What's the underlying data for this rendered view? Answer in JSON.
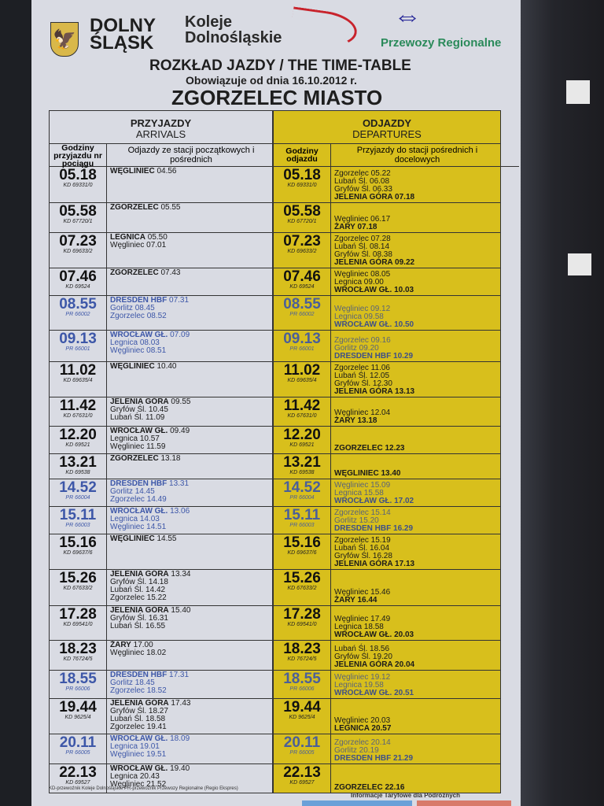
{
  "header": {
    "logo_dolny_slask": "DOLNY ŚLĄSK",
    "logo_koleje": "Koleje Dolnośląskie",
    "logo_przewozy": "Przewozy Regionalne",
    "title": "ROZKŁAD JAZDY / THE TIME-TABLE",
    "valid_from": "Obowiązuje od dnia 16.10.2012 r.",
    "station": "ZGORZELEC MIASTO"
  },
  "arrivals": {
    "title": "PRZYJAZDY",
    "title_en": "ARRIVALS",
    "col_time": "Godziny przyjazdu nr pociągu",
    "col_stations": "Odjazdy ze stacji początkowych i pośrednich"
  },
  "departures": {
    "title": "ODJAZDY",
    "title_en": "DEPARTURES",
    "col_time": "Godziny odjazdu",
    "col_stations": "Przyjazdy do stacji pośrednich i docelowych"
  },
  "colors": {
    "departures_bg": "#d8bf1c",
    "pr_blue": "#3d57a8",
    "kd_black": "#111111"
  },
  "rows": [
    {
      "time": "05.18",
      "train": "KD 69331/0",
      "carrier": "KD",
      "arr": [
        {
          "s": "WĘGLINIEC",
          "t": "04.56"
        }
      ],
      "dep": [
        "Zgorzelec 05.22",
        "Lubań Śl. 06.08",
        "Gryfów Śl. 06.33",
        "JELENIA GÓRA 07.18"
      ]
    },
    {
      "time": "05.58",
      "train": "KD 67720/1",
      "carrier": "KD",
      "arr": [
        {
          "s": "ZGORZELEC",
          "t": "05.55"
        }
      ],
      "dep": [
        "Węgliniec 06.17",
        "ŻARY 07.18"
      ]
    },
    {
      "time": "07.23",
      "train": "KD 69633/2",
      "carrier": "KD",
      "arr": [
        {
          "s": "LEGNICA",
          "t": "05.50"
        },
        {
          "s": "Węgliniec",
          "t": "07.01"
        }
      ],
      "dep": [
        "Zgorzelec 07.28",
        "Lubań Śl. 08.14",
        "Gryfów Śl. 08.38",
        "JELENIA GÓRA 09.22"
      ]
    },
    {
      "time": "07.46",
      "train": "KD 69524",
      "carrier": "KD",
      "arr": [
        {
          "s": "ZGORZELEC",
          "t": "07.43"
        }
      ],
      "dep": [
        "Węgliniec 08.05",
        "Legnica 09.00",
        "WROCŁAW GŁ. 10.03"
      ]
    },
    {
      "time": "08.55",
      "train": "PR 66002",
      "carrier": "PR",
      "arr": [
        {
          "s": "DRESDEN HBF",
          "t": "07.31"
        },
        {
          "s": "Gorlitz",
          "t": "08.45"
        },
        {
          "s": "Zgorzelec",
          "t": "08.52"
        }
      ],
      "dep": [
        "Węgliniec 09.12",
        "Legnica 09.58",
        "WROCŁAW GŁ. 10.50"
      ]
    },
    {
      "time": "09.13",
      "train": "PR 66001",
      "carrier": "PR",
      "arr": [
        {
          "s": "WROCŁAW GŁ.",
          "t": "07.09"
        },
        {
          "s": "Legnica",
          "t": "08.03"
        },
        {
          "s": "Węgliniec",
          "t": "08.51"
        }
      ],
      "dep": [
        "Zgorzelec 09.16",
        "Gorlitz 09.20",
        "DRESDEN HBF 10.29"
      ]
    },
    {
      "time": "11.02",
      "train": "KD 69635/4",
      "carrier": "KD",
      "arr": [
        {
          "s": "WĘGLINIEC",
          "t": "10.40"
        }
      ],
      "dep": [
        "Zgorzelec 11.06",
        "Lubań Śl. 12.05",
        "Gryfów Śl. 12.30",
        "JELENIA GÓRA 13.13"
      ]
    },
    {
      "time": "11.42",
      "train": "KD 67631/0",
      "carrier": "KD",
      "arr": [
        {
          "s": "JELENIA GÓRA",
          "t": "09.55"
        },
        {
          "s": "Gryfów Śl.",
          "t": "10.45"
        },
        {
          "s": "Lubań Śl.",
          "t": "11.09"
        }
      ],
      "dep": [
        "Węgliniec 12.04",
        "ŻARY 13.18"
      ]
    },
    {
      "time": "12.20",
      "train": "KD 69521",
      "carrier": "KD",
      "arr": [
        {
          "s": "WROCŁAW GŁ.",
          "t": "09.49"
        },
        {
          "s": "Legnica",
          "t": "10.57"
        },
        {
          "s": "Węgliniec",
          "t": "11.59"
        }
      ],
      "dep": [
        "ZGORZELEC 12.23"
      ]
    },
    {
      "time": "13.21",
      "train": "KD 69538",
      "carrier": "KD",
      "arr": [
        {
          "s": "ZGORZELEC",
          "t": "13.18"
        }
      ],
      "dep": [
        "WĘGLINIEC 13.40"
      ]
    },
    {
      "time": "14.52",
      "train": "PR 66004",
      "carrier": "PR",
      "arr": [
        {
          "s": "DRESDEN HBF",
          "t": "13.31"
        },
        {
          "s": "Gorlitz",
          "t": "14.45"
        },
        {
          "s": "Zgorzelec",
          "t": "14.49"
        }
      ],
      "dep": [
        "Węgliniec 15.09",
        "Legnica 15.58",
        "WROCŁAW GŁ. 17.02"
      ]
    },
    {
      "time": "15.11",
      "train": "PR 66003",
      "carrier": "PR",
      "arr": [
        {
          "s": "WROCŁAW GŁ.",
          "t": "13.06"
        },
        {
          "s": "Legnica",
          "t": "14.03"
        },
        {
          "s": "Węgliniec",
          "t": "14.51"
        }
      ],
      "dep": [
        "Zgorzelec 15.14",
        "Gorlitz 15.20",
        "DRESDEN HBF 16.29"
      ]
    },
    {
      "time": "15.16",
      "train": "KD 69637/6",
      "carrier": "KD",
      "arr": [
        {
          "s": "WĘGLINIEC",
          "t": "14.55"
        }
      ],
      "dep": [
        "Zgorzelec 15.19",
        "Lubań Śl. 16.04",
        "Gryfów Śl. 16.28",
        "JELENIA GÓRA 17.13"
      ]
    },
    {
      "time": "15.26",
      "train": "KD 67633/2",
      "carrier": "KD",
      "arr": [
        {
          "s": "JELENIA GÓRA",
          "t": "13.34"
        },
        {
          "s": "Gryfów Śl.",
          "t": "14.18"
        },
        {
          "s": "Lubań Śl.",
          "t": "14.42"
        },
        {
          "s": "Zgorzelec",
          "t": "15.22"
        }
      ],
      "dep": [
        "Węgliniec 15.46",
        "ŻARY 16.44"
      ]
    },
    {
      "time": "17.28",
      "train": "KD 69541/0",
      "carrier": "KD",
      "arr": [
        {
          "s": "JELENIA GÓRA",
          "t": "15.40"
        },
        {
          "s": "Gryfów Śl.",
          "t": "16.31"
        },
        {
          "s": "Lubań Śl.",
          "t": "16.55"
        }
      ],
      "dep": [
        "Węgliniec 17.49",
        "Legnica 18.58",
        "WROCŁAW GŁ. 20.03"
      ]
    },
    {
      "time": "18.23",
      "train": "KD 76724/5",
      "carrier": "KD",
      "arr": [
        {
          "s": "ŻARY",
          "t": "17.00"
        },
        {
          "s": "Węgliniec",
          "t": "18.02"
        }
      ],
      "dep": [
        "Lubań Śl. 18.56",
        "Gryfów Śl. 19.20",
        "JELENIA GÓRA 20.04"
      ]
    },
    {
      "time": "18.55",
      "train": "PR 66006",
      "carrier": "PR",
      "arr": [
        {
          "s": "DRESDEN HBF",
          "t": "17.31"
        },
        {
          "s": "Gorlitz",
          "t": "18.45"
        },
        {
          "s": "Zgorzelec",
          "t": "18.52"
        }
      ],
      "dep": [
        "Węgliniec 19.12",
        "Legnica 19.58",
        "WROCŁAW GŁ. 20.51"
      ]
    },
    {
      "time": "19.44",
      "train": "KD 9625/4",
      "carrier": "KD",
      "arr": [
        {
          "s": "JELENIA GÓRA",
          "t": "17.43"
        },
        {
          "s": "Gryfów Śl.",
          "t": "18.27"
        },
        {
          "s": "Lubań Śl.",
          "t": "18.58"
        },
        {
          "s": "Zgorzelec",
          "t": "19.41"
        }
      ],
      "dep": [
        "Węgliniec 20.03",
        "LEGNICA 20.57"
      ]
    },
    {
      "time": "20.11",
      "train": "PR 66005",
      "carrier": "PR",
      "arr": [
        {
          "s": "WROCŁAW GŁ.",
          "t": "18.09"
        },
        {
          "s": "Legnica",
          "t": "19.01"
        },
        {
          "s": "Węgliniec",
          "t": "19.51"
        }
      ],
      "dep": [
        "Zgorzelec 20.14",
        "Gorlitz 20.19",
        "DRESDEN HBF 21.29"
      ]
    },
    {
      "time": "22.13",
      "train": "KD 69527",
      "carrier": "KD",
      "arr": [
        {
          "s": "WROCŁAW GŁ.",
          "t": "19.40"
        },
        {
          "s": "Legnica",
          "t": "20.43"
        },
        {
          "s": "Węgliniec",
          "t": "21.52"
        }
      ],
      "dep": [
        "ZGORZELEC 22.16"
      ]
    }
  ],
  "footer": {
    "legend": "KD-przewoźnik Koleje Dolnośląskie   PR-przewoźnik Przewozy Regionalne (Regio Ekspres)",
    "tariff_info": "Informacje Taryfowe dla Podróżnych"
  }
}
